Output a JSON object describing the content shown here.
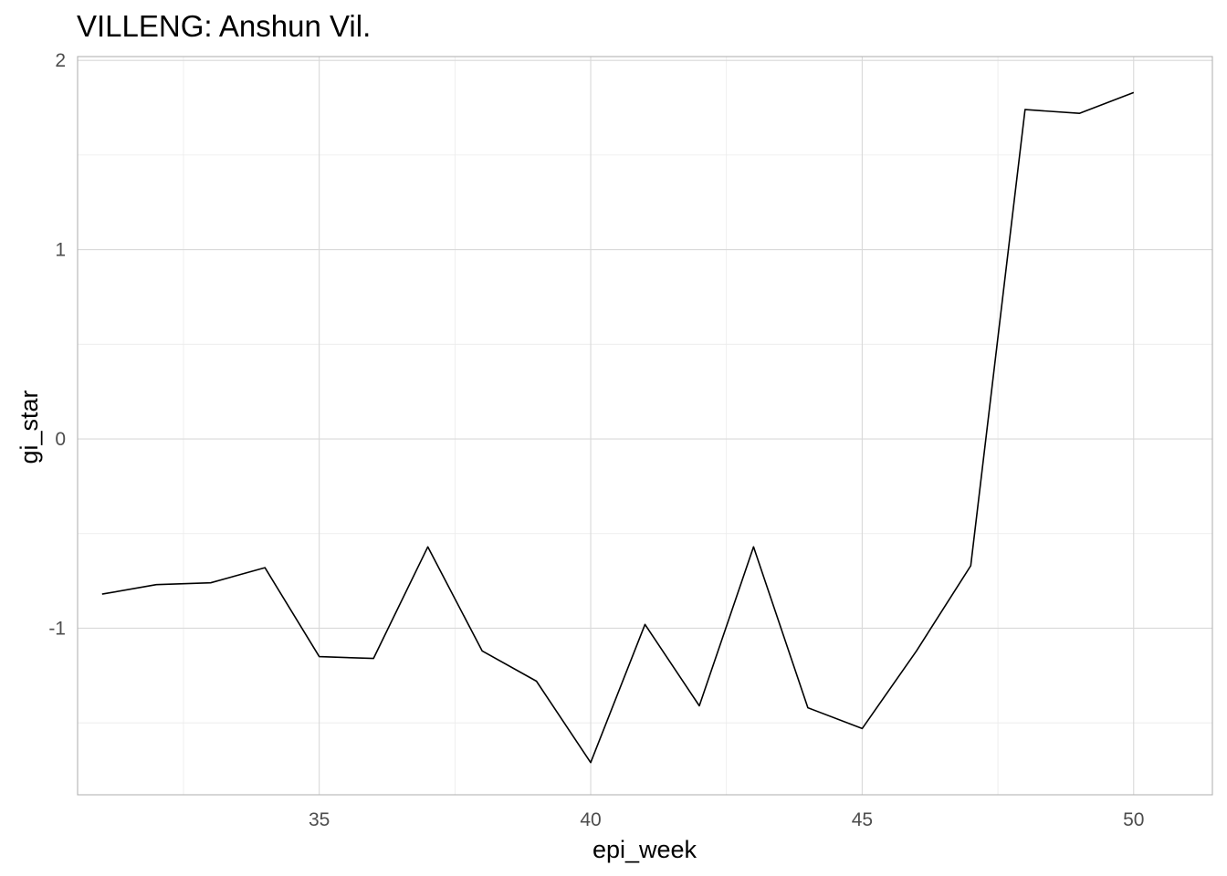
{
  "chart_data": {
    "type": "line",
    "title": "VILLENG: Anshun Vil.",
    "xlabel": "epi_week",
    "ylabel": "gi_star",
    "xlim": [
      30.55,
      51.45
    ],
    "ylim": [
      -1.88,
      2.02
    ],
    "x_ticks": [
      35,
      40,
      45,
      50
    ],
    "y_ticks": [
      -1,
      0,
      1,
      2
    ],
    "x_minor": [
      32.5,
      37.5,
      42.5,
      47.5
    ],
    "y_minor": [
      -1.5,
      -0.5,
      0.5,
      1.5
    ],
    "grid": true,
    "legend": "none",
    "line_color": "#000000",
    "series": [
      {
        "x": [
          31,
          32,
          33,
          34,
          35,
          36,
          37,
          38,
          39,
          40,
          41,
          42,
          43,
          44,
          45,
          46,
          47,
          48,
          49,
          50
        ],
        "values": [
          -0.82,
          -0.77,
          -0.76,
          -0.68,
          -1.15,
          -1.16,
          -0.57,
          -1.12,
          -1.28,
          -1.71,
          -0.98,
          -1.41,
          -0.57,
          -1.42,
          -1.53,
          -1.12,
          -0.67,
          1.74,
          1.72,
          1.83
        ]
      }
    ]
  }
}
